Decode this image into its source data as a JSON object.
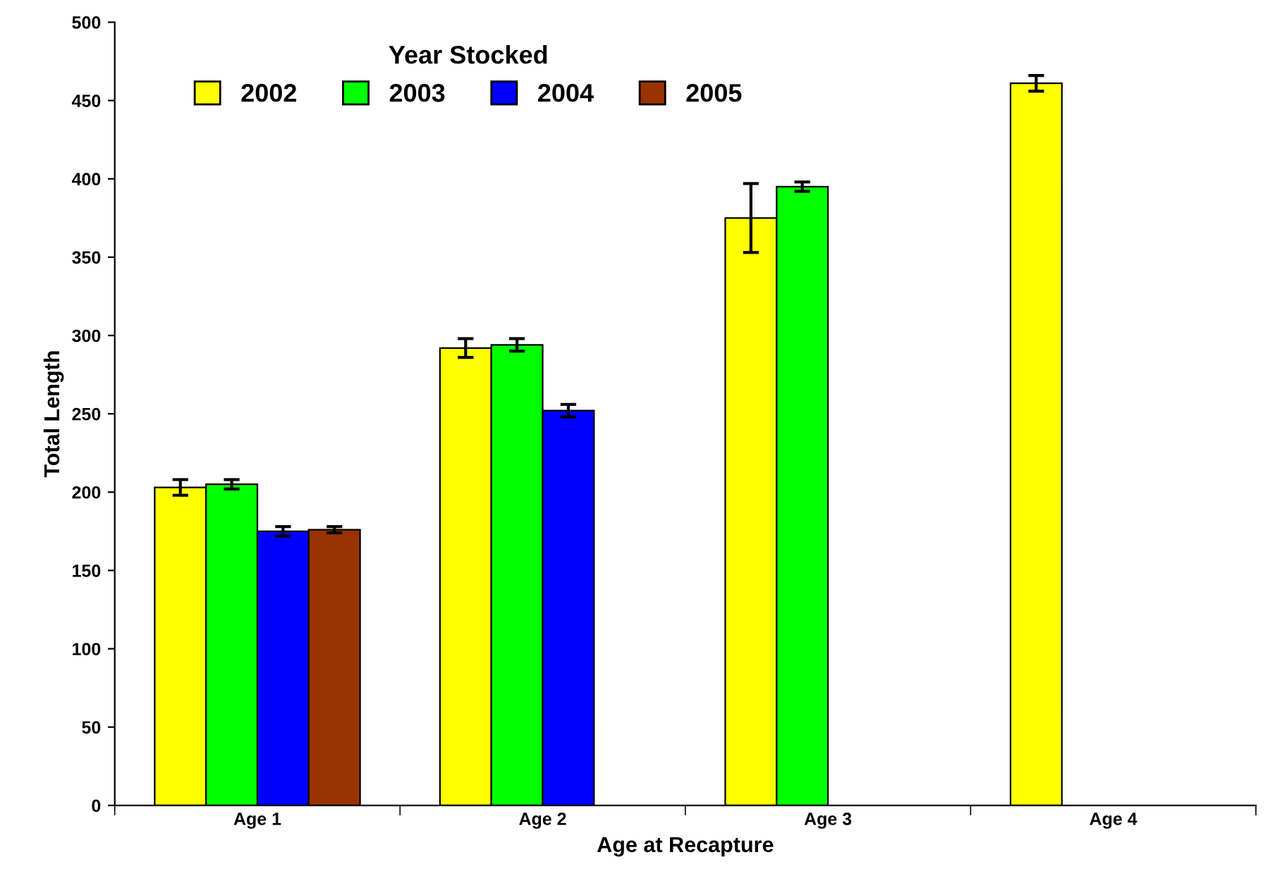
{
  "chart_data": {
    "type": "bar",
    "xlabel": "Age at Recapture",
    "ylabel": "Total Length",
    "legend_title": "Year Stocked",
    "legend": "top left",
    "grid": false,
    "categories": [
      "Age 1",
      "Age 2",
      "Age 3",
      "Age 4"
    ],
    "ylim": [
      0,
      500
    ],
    "yticks": [
      0,
      50,
      100,
      150,
      200,
      250,
      300,
      350,
      400,
      450,
      500
    ],
    "series": [
      {
        "name": "2002",
        "color": "#ffff00",
        "values": [
          203,
          292,
          375,
          461
        ],
        "errors": [
          5,
          6,
          22,
          5
        ]
      },
      {
        "name": "2003",
        "color": "#00ff00",
        "values": [
          205,
          294,
          395,
          null
        ],
        "errors": [
          3,
          4,
          3,
          null
        ]
      },
      {
        "name": "2004",
        "color": "#0000ff",
        "values": [
          175,
          252,
          null,
          null
        ],
        "errors": [
          3,
          4,
          null,
          null
        ]
      },
      {
        "name": "2005",
        "color": "#993300",
        "values": [
          176,
          null,
          null,
          null
        ],
        "errors": [
          2,
          null,
          null,
          null
        ]
      }
    ]
  }
}
